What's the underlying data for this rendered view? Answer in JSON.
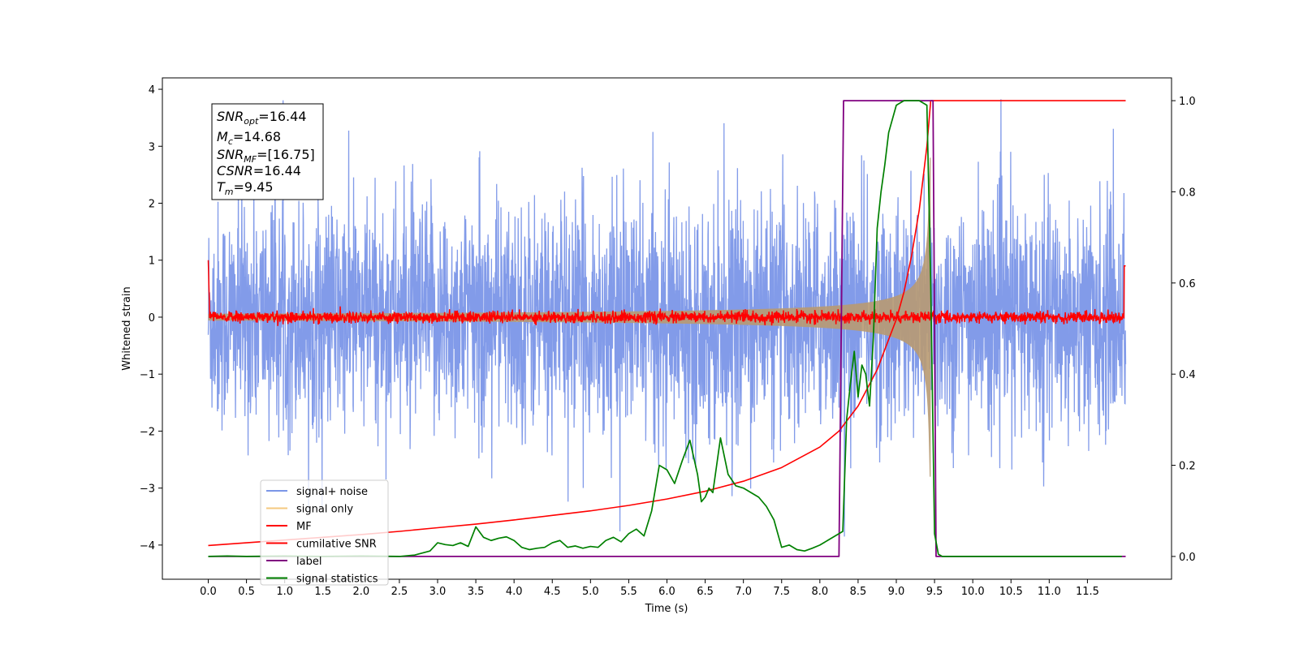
{
  "chart_data": {
    "type": "line",
    "xlabel": "Time (s)",
    "ylabel": "Whitened strain",
    "xlim": [
      -0.6,
      12.6
    ],
    "ylim": [
      -4.6,
      4.2
    ],
    "y2lim": [
      -0.05,
      1.05
    ],
    "x_ticks": [
      "0.0",
      "0.5",
      "1.0",
      "1.5",
      "2.0",
      "2.5",
      "3.0",
      "3.5",
      "4.0",
      "4.5",
      "5.0",
      "5.5",
      "6.0",
      "6.5",
      "7.0",
      "7.5",
      "8.0",
      "8.5",
      "9.0",
      "9.5",
      "10.0",
      "10.5",
      "11.0",
      "11.5"
    ],
    "y_ticks": [
      "4",
      "3",
      "2",
      "1",
      "0",
      "−1",
      "−2",
      "−3",
      "−4"
    ],
    "y2_ticks": [
      "1.0",
      "0.8",
      "0.6",
      "0.4",
      "0.2",
      "0.0"
    ],
    "grid": false,
    "legend_position": "lower-left",
    "stats": {
      "snr_opt": {
        "base": "SNR",
        "sub": "opt",
        "value": "=16.44"
      },
      "mc": {
        "base": "M",
        "sub": "c",
        "value": "=14.68"
      },
      "snr_mf": {
        "base": "SNR",
        "sub": "MF",
        "value": "=[16.75]"
      },
      "csnr": {
        "base": "CSNR",
        "sub": "",
        "value": "=16.44"
      },
      "tm": {
        "base": "T",
        "sub": "m",
        "value": "=9.45"
      }
    },
    "series": [
      {
        "name": "signal+ noise",
        "color": "#7b96e8",
        "axis": "left",
        "noise_envelope": {
          "t_start": 0.0,
          "t_end": 12.0,
          "std": 1.0,
          "max_abs": 3.85
        }
      },
      {
        "name": "signal only",
        "color": "#f5c97f",
        "axis": "left",
        "chirp": {
          "t_start": 0.0,
          "t_merger": 9.45,
          "amp_at_start": 0.06,
          "amp_peak": 2.8
        }
      },
      {
        "name": "MF",
        "color": "#ff0000",
        "axis": "left",
        "noise_envelope": {
          "t_start": 0.0,
          "t_end": 12.0,
          "std": 0.05,
          "edge_value_start": 1.0,
          "edge_value_end": 0.9
        }
      },
      {
        "name": "cumilative SNR",
        "color": "#ff0000",
        "axis": "right",
        "x": [
          0.0,
          0.5,
          1.0,
          1.5,
          2.0,
          2.5,
          3.0,
          3.5,
          4.0,
          4.5,
          5.0,
          5.5,
          6.0,
          6.5,
          7.0,
          7.5,
          8.0,
          8.25,
          8.5,
          8.75,
          9.0,
          9.1,
          9.2,
          9.3,
          9.4,
          9.45,
          12.0
        ],
        "y": [
          0.024,
          0.03,
          0.036,
          0.042,
          0.048,
          0.055,
          0.063,
          0.071,
          0.08,
          0.09,
          0.1,
          0.112,
          0.126,
          0.143,
          0.165,
          0.195,
          0.24,
          0.275,
          0.33,
          0.41,
          0.52,
          0.58,
          0.66,
          0.76,
          0.9,
          1.0,
          1.0
        ]
      },
      {
        "name": "label",
        "color": "#800080",
        "axis": "right",
        "x": [
          0.0,
          8.25,
          8.31,
          9.45,
          9.48,
          9.52,
          12.0
        ],
        "y": [
          0.0,
          0.0,
          1.0,
          1.0,
          1.0,
          0.0,
          0.0
        ]
      },
      {
        "name": "signal statistics",
        "color": "#008000",
        "axis": "right",
        "x": [
          0.0,
          0.25,
          0.5,
          1.0,
          1.5,
          2.0,
          2.5,
          2.7,
          2.9,
          3.0,
          3.1,
          3.2,
          3.3,
          3.4,
          3.5,
          3.6,
          3.7,
          3.8,
          3.9,
          4.0,
          4.1,
          4.2,
          4.3,
          4.4,
          4.5,
          4.6,
          4.7,
          4.8,
          4.9,
          5.0,
          5.1,
          5.2,
          5.3,
          5.4,
          5.5,
          5.6,
          5.7,
          5.8,
          5.9,
          6.0,
          6.1,
          6.2,
          6.3,
          6.4,
          6.45,
          6.5,
          6.55,
          6.6,
          6.7,
          6.75,
          6.8,
          6.9,
          7.0,
          7.1,
          7.2,
          7.3,
          7.4,
          7.5,
          7.6,
          7.7,
          7.8,
          7.9,
          8.0,
          8.1,
          8.2,
          8.3,
          8.35,
          8.4,
          8.45,
          8.5,
          8.55,
          8.6,
          8.65,
          8.7,
          8.75,
          8.8,
          8.85,
          8.9,
          9.0,
          9.1,
          9.2,
          9.3,
          9.4,
          9.45,
          9.5,
          9.55,
          9.6,
          9.7,
          10.0,
          11.0,
          11.95
        ],
        "y": [
          0.0,
          0.001,
          0.0,
          0.001,
          0.0,
          0.001,
          0.0,
          0.003,
          0.012,
          0.03,
          0.026,
          0.024,
          0.03,
          0.022,
          0.065,
          0.042,
          0.035,
          0.04,
          0.043,
          0.035,
          0.02,
          0.015,
          0.018,
          0.02,
          0.03,
          0.035,
          0.02,
          0.023,
          0.018,
          0.022,
          0.02,
          0.035,
          0.042,
          0.032,
          0.05,
          0.06,
          0.045,
          0.1,
          0.2,
          0.19,
          0.16,
          0.21,
          0.255,
          0.18,
          0.12,
          0.13,
          0.15,
          0.14,
          0.26,
          0.22,
          0.18,
          0.155,
          0.15,
          0.14,
          0.13,
          0.11,
          0.08,
          0.02,
          0.025,
          0.015,
          0.012,
          0.018,
          0.025,
          0.035,
          0.045,
          0.055,
          0.3,
          0.38,
          0.45,
          0.35,
          0.42,
          0.4,
          0.33,
          0.48,
          0.72,
          0.8,
          0.86,
          0.93,
          0.99,
          1.0,
          1.0,
          1.0,
          0.99,
          0.6,
          0.05,
          0.005,
          0.0,
          0.0,
          0.0,
          0.0,
          0.0
        ]
      }
    ]
  }
}
